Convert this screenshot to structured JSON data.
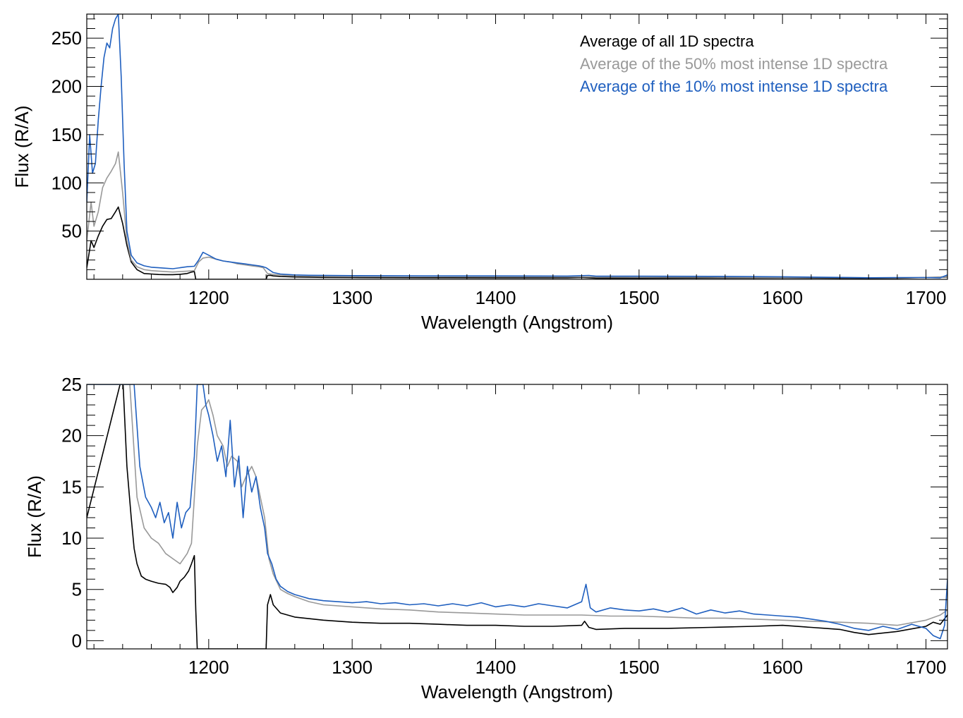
{
  "colors": {
    "all": "#000000",
    "p50": "#999999",
    "p10": "#1f5fbf"
  },
  "legend": {
    "placement": "top-right",
    "items": [
      {
        "label": "Average of all 1D spectra",
        "color": "#000000"
      },
      {
        "label": "Average of the 50% most intense 1D spectra",
        "color": "#999999"
      },
      {
        "label": "Average of the 10% most intense 1D spectra",
        "color": "#1f5fbf"
      }
    ]
  },
  "chart_data": [
    {
      "type": "line",
      "title": "",
      "xlabel": "Wavelength (Angstrom)",
      "ylabel": "Flux (R/A)",
      "xlim": [
        1115,
        1715
      ],
      "ylim": [
        0,
        275
      ],
      "xticks": [
        1200,
        1300,
        1400,
        1500,
        1600,
        1700
      ],
      "yticks": [
        50,
        100,
        150,
        200,
        250
      ],
      "grid": false,
      "series": [
        {
          "name": "Average of all 1D spectra",
          "color": "#000000",
          "x": [
            1115,
            1118,
            1120,
            1123,
            1126,
            1129,
            1132,
            1135,
            1137,
            1140,
            1143,
            1146,
            1150,
            1155,
            1160,
            1165,
            1170,
            1175,
            1180,
            1185,
            1188,
            1190,
            1191,
            1195,
            1200,
            1210,
            1220,
            1230,
            1238,
            1240,
            1241,
            1243,
            1245,
            1250,
            1260,
            1280,
            1300,
            1350,
            1400,
            1450,
            1460,
            1470,
            1500,
            1550,
            1600,
            1640,
            1660,
            1680,
            1700,
            1710,
            1715
          ],
          "y": [
            12,
            40,
            33,
            45,
            55,
            62,
            63,
            70,
            75,
            58,
            35,
            18,
            10,
            6,
            5.5,
            5,
            4.8,
            4.8,
            5.2,
            6,
            7.5,
            8,
            0,
            0,
            0,
            0,
            0,
            0,
            0,
            0,
            4,
            4.2,
            3.5,
            3,
            2.4,
            2,
            1.8,
            1.6,
            1.5,
            1.5,
            1.8,
            1.2,
            1.2,
            1.4,
            1.5,
            1.2,
            1.0,
            1.2,
            1.8,
            2.2,
            2.5
          ]
        },
        {
          "name": "Average of the 50% most intense 1D spectra",
          "color": "#999999",
          "x": [
            1115,
            1118,
            1120,
            1123,
            1126,
            1129,
            1132,
            1135,
            1137,
            1140,
            1143,
            1146,
            1150,
            1155,
            1160,
            1165,
            1170,
            1175,
            1180,
            1185,
            1190,
            1193,
            1196,
            1200,
            1205,
            1210,
            1215,
            1220,
            1225,
            1230,
            1235,
            1238,
            1241,
            1245,
            1250,
            1260,
            1270,
            1300,
            1350,
            1400,
            1450,
            1500,
            1550,
            1600,
            1640,
            1660,
            1680,
            1700,
            1710,
            1715
          ],
          "y": [
            40,
            80,
            55,
            70,
            95,
            105,
            112,
            120,
            132,
            90,
            40,
            20,
            13,
            10,
            9,
            8.5,
            8,
            7.5,
            8,
            8.5,
            9,
            18,
            22,
            23,
            21,
            19,
            18,
            16,
            15,
            14,
            13,
            12,
            6,
            5,
            4.5,
            3.8,
            3.5,
            3.2,
            2.9,
            2.8,
            2.6,
            2.3,
            2.2,
            2.0,
            1.8,
            1.6,
            1.5,
            1.9,
            2.5,
            3
          ]
        },
        {
          "name": "Average of the 10% most intense 1D spectra",
          "color": "#1f5fbf",
          "x": [
            1115,
            1117,
            1119,
            1121,
            1123,
            1125,
            1127,
            1129,
            1131,
            1133,
            1135,
            1137,
            1139,
            1141,
            1143,
            1146,
            1150,
            1155,
            1160,
            1165,
            1170,
            1175,
            1180,
            1185,
            1190,
            1193,
            1196,
            1200,
            1205,
            1210,
            1215,
            1220,
            1225,
            1230,
            1235,
            1238,
            1240,
            1245,
            1250,
            1260,
            1270,
            1300,
            1350,
            1400,
            1450,
            1465,
            1470,
            1500,
            1550,
            1600,
            1640,
            1660,
            1680,
            1700,
            1710,
            1715
          ],
          "y": [
            80,
            150,
            110,
            120,
            165,
            200,
            230,
            245,
            240,
            260,
            270,
            275,
            210,
            120,
            50,
            25,
            17,
            14,
            12.5,
            12,
            11.5,
            11,
            12,
            13,
            13.5,
            20,
            28,
            25,
            21,
            19,
            18,
            17,
            16,
            15,
            14,
            13,
            12,
            7,
            5.5,
            4.5,
            4.2,
            3.8,
            3.5,
            3.5,
            3.4,
            4,
            3.2,
            3.2,
            3.1,
            2.6,
            2.0,
            1.6,
            1.8,
            1.8,
            1.5,
            4.5
          ]
        }
      ]
    },
    {
      "type": "line",
      "title": "",
      "xlabel": "Wavelength (Angstrom)",
      "ylabel": "Flux (R/A)",
      "xlim": [
        1115,
        1715
      ],
      "ylim": [
        -0.8,
        25
      ],
      "xticks": [
        1200,
        1300,
        1400,
        1500,
        1600,
        1700
      ],
      "yticks": [
        0,
        5,
        10,
        15,
        20,
        25
      ],
      "grid": false,
      "series": [
        {
          "name": "Average of all 1D spectra",
          "color": "#000000",
          "x": [
            1115,
            1140,
            1143,
            1146,
            1148,
            1150,
            1153,
            1156,
            1160,
            1165,
            1170,
            1173,
            1175,
            1178,
            1180,
            1183,
            1186,
            1188,
            1190,
            1191,
            1192,
            1200,
            1230,
            1239,
            1240,
            1241,
            1243,
            1245,
            1250,
            1260,
            1280,
            1300,
            1320,
            1340,
            1360,
            1380,
            1400,
            1420,
            1440,
            1460,
            1462,
            1465,
            1470,
            1490,
            1500,
            1520,
            1550,
            1580,
            1600,
            1620,
            1640,
            1650,
            1660,
            1680,
            1700,
            1705,
            1710,
            1715
          ],
          "y": [
            12,
            26,
            17,
            12,
            9,
            7.5,
            6.3,
            6,
            5.8,
            5.6,
            5.5,
            5.2,
            4.7,
            5.2,
            5.8,
            6.2,
            6.8,
            7.5,
            8.3,
            3,
            -0.8,
            -0.8,
            -0.8,
            -0.8,
            -0.8,
            3.5,
            4.5,
            3.5,
            2.7,
            2.3,
            2.0,
            1.8,
            1.7,
            1.7,
            1.6,
            1.5,
            1.5,
            1.4,
            1.4,
            1.5,
            1.9,
            1.3,
            1.1,
            1.2,
            1.2,
            1.2,
            1.3,
            1.4,
            1.5,
            1.3,
            1.1,
            0.8,
            0.6,
            0.9,
            1.4,
            1.8,
            1.6,
            2.5
          ]
        },
        {
          "name": "Average of the 50% most intense 1D spectra",
          "color": "#999999",
          "x": [
            1115,
            1145,
            1150,
            1155,
            1160,
            1165,
            1170,
            1175,
            1180,
            1185,
            1188,
            1190,
            1192,
            1195,
            1198,
            1200,
            1203,
            1206,
            1210,
            1213,
            1216,
            1220,
            1223,
            1226,
            1230,
            1233,
            1236,
            1239,
            1242,
            1245,
            1250,
            1255,
            1260,
            1270,
            1280,
            1300,
            1320,
            1340,
            1360,
            1380,
            1400,
            1420,
            1440,
            1460,
            1480,
            1500,
            1520,
            1540,
            1560,
            1580,
            1600,
            1620,
            1640,
            1660,
            1680,
            1700,
            1710,
            1715
          ],
          "y": [
            25,
            25,
            14,
            11,
            10,
            9.5,
            8.5,
            8,
            7.5,
            8.5,
            9.5,
            14,
            19,
            22.5,
            23,
            23.5,
            22,
            20,
            19,
            17,
            18,
            17.5,
            15,
            16,
            17,
            16,
            14,
            12,
            8,
            6.5,
            5,
            4.6,
            4.3,
            3.8,
            3.5,
            3.3,
            3.1,
            3.0,
            2.8,
            2.7,
            2.6,
            2.5,
            2.5,
            2.5,
            2.4,
            2.4,
            2.3,
            2.2,
            2.2,
            2.1,
            2.0,
            1.9,
            1.8,
            1.7,
            1.5,
            2.0,
            2.5,
            3.0
          ]
        },
        {
          "name": "Average of the 10% most intense 1D spectra",
          "color": "#1f5fbf",
          "x": [
            1115,
            1148,
            1152,
            1156,
            1160,
            1163,
            1166,
            1169,
            1172,
            1175,
            1178,
            1181,
            1184,
            1187,
            1190,
            1192,
            1194,
            1196,
            1198,
            1200,
            1203,
            1206,
            1209,
            1212,
            1215,
            1218,
            1221,
            1224,
            1227,
            1230,
            1233,
            1236,
            1239,
            1241,
            1244,
            1247,
            1250,
            1255,
            1260,
            1265,
            1270,
            1275,
            1280,
            1290,
            1300,
            1310,
            1320,
            1330,
            1340,
            1350,
            1360,
            1370,
            1380,
            1390,
            1400,
            1410,
            1420,
            1430,
            1440,
            1450,
            1460,
            1463,
            1466,
            1470,
            1480,
            1490,
            1500,
            1510,
            1520,
            1530,
            1540,
            1550,
            1560,
            1570,
            1580,
            1590,
            1600,
            1610,
            1620,
            1630,
            1640,
            1650,
            1660,
            1670,
            1680,
            1690,
            1700,
            1705,
            1710,
            1713,
            1715
          ],
          "y": [
            25,
            25,
            17,
            14,
            13,
            12,
            13.5,
            11.5,
            12.5,
            10,
            13.5,
            11,
            12.5,
            13,
            18,
            25,
            25,
            25,
            23,
            22,
            20,
            17.5,
            19,
            16,
            21.5,
            15,
            18,
            12,
            17,
            14.5,
            16,
            13,
            11,
            8.5,
            7.5,
            6,
            5.3,
            4.8,
            4.5,
            4.3,
            4.1,
            4.0,
            3.9,
            3.8,
            3.7,
            3.8,
            3.6,
            3.7,
            3.5,
            3.6,
            3.4,
            3.6,
            3.4,
            3.7,
            3.3,
            3.5,
            3.3,
            3.6,
            3.4,
            3.2,
            3.8,
            5.5,
            3.2,
            2.8,
            3.2,
            3.0,
            2.9,
            3.1,
            2.8,
            3.2,
            2.6,
            3.0,
            2.7,
            2.9,
            2.6,
            2.5,
            2.4,
            2.3,
            2.1,
            1.9,
            1.6,
            1.2,
            1.0,
            1.4,
            1.1,
            1.6,
            1.2,
            0.5,
            0.2,
            1.5,
            6
          ]
        }
      ]
    }
  ]
}
